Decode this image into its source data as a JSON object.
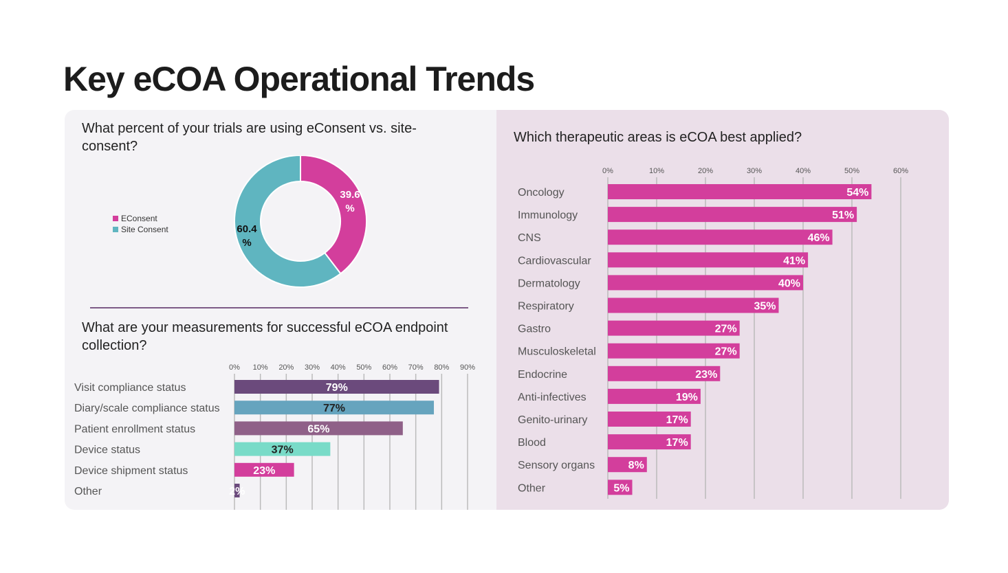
{
  "title": "Key eCOA Operational Trends",
  "chart_data": [
    {
      "type": "pie",
      "title": "What percent of your trials are using eConsent vs. site-consent?",
      "legend": [
        "EConsent",
        "Site Consent"
      ],
      "values": [
        39.6,
        60.4
      ],
      "labels": [
        "39.6 %",
        "60.4 %"
      ],
      "colors": [
        "#d33e9c",
        "#5fb5c0"
      ],
      "legend_placement": "left"
    },
    {
      "type": "bar",
      "title": "What are your measurements for successful eCOA endpoint collection?",
      "categories": [
        "Visit compliance status",
        "Diary/scale compliance status",
        "Patient enrollment status",
        "Device status",
        "Device shipment status",
        "Other"
      ],
      "values": [
        79,
        77,
        65,
        37,
        23,
        2
      ],
      "labels": [
        "79%",
        "77%",
        "65%",
        "37%",
        "23%",
        "2%"
      ],
      "colors": [
        "#6b4a7c",
        "#66a4be",
        "#8f6088",
        "#79dbc8",
        "#d33e9c",
        "#6b4a7c"
      ],
      "label_colors": [
        "#fff",
        "#222",
        "#fff",
        "#222",
        "#fff",
        "#fff"
      ],
      "ticks": [
        "0%",
        "10%",
        "20%",
        "30%",
        "40%",
        "50%",
        "60%",
        "70%",
        "80%",
        "90%"
      ],
      "xlim": [
        0,
        90
      ]
    },
    {
      "type": "bar",
      "title": "Which therapeutic areas is eCOA best applied?",
      "categories": [
        "Oncology",
        "Immunology",
        "CNS",
        "Cardiovascular",
        "Dermatology",
        "Respiratory",
        "Gastro",
        "Musculoskeletal",
        "Endocrine",
        "Anti-infectives",
        "Genito-urinary",
        "Blood",
        "Sensory organs",
        "Other"
      ],
      "values": [
        54,
        51,
        46,
        41,
        40,
        35,
        27,
        27,
        23,
        19,
        17,
        17,
        8,
        5
      ],
      "labels": [
        "54%",
        "51%",
        "46%",
        "41%",
        "40%",
        "35%",
        "27%",
        "27%",
        "23%",
        "19%",
        "17%",
        "17%",
        "8%",
        "5%"
      ],
      "color": "#d33e9c",
      "ticks": [
        "0%",
        "10%",
        "20%",
        "30%",
        "40%",
        "50%",
        "60%"
      ],
      "xlim": [
        0,
        60
      ]
    }
  ]
}
